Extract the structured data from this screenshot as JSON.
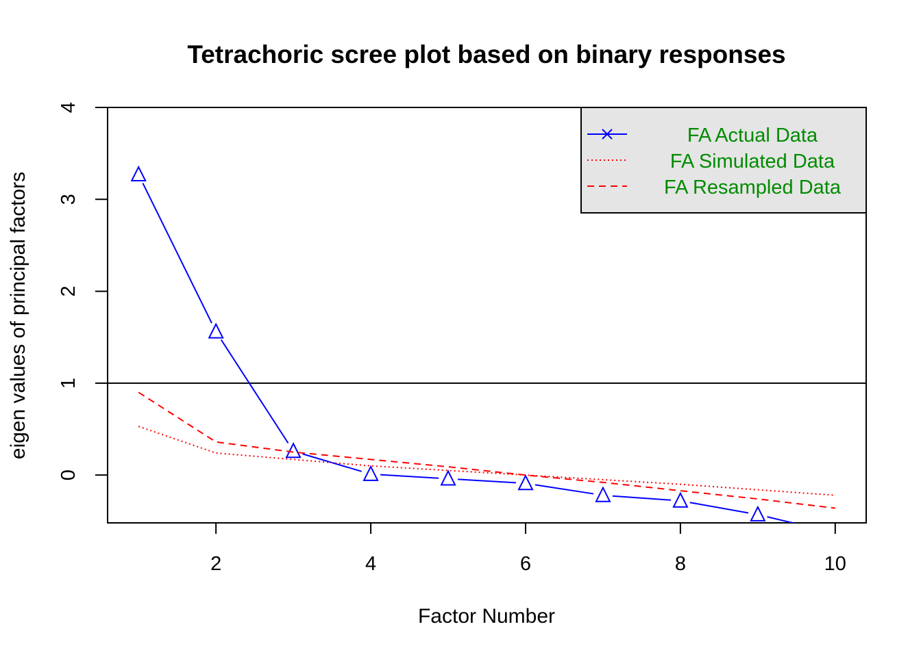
{
  "chart_data": {
    "type": "line",
    "title": "Tetrachoric scree plot based on binary responses",
    "xlabel": "Factor Number",
    "ylabel": "eigen values of principal factors",
    "xlim": [
      0.6,
      10.4
    ],
    "ylim": [
      -0.52,
      4
    ],
    "x_ticks": [
      2,
      4,
      6,
      8,
      10
    ],
    "y_ticks": [
      0,
      1,
      2,
      3,
      4
    ],
    "reference_line_y": 1,
    "x": [
      1,
      2,
      3,
      4,
      5,
      6,
      7,
      8,
      9,
      10
    ],
    "series": [
      {
        "name": "FA  Actual Data",
        "color": "#0000FF",
        "style": "solid",
        "marker": "triangle",
        "values": [
          3.27,
          1.56,
          0.26,
          0.01,
          -0.04,
          -0.09,
          -0.22,
          -0.28,
          -0.43,
          -0.63
        ]
      },
      {
        "name": "FA  Simulated Data",
        "color": "#FF0000",
        "style": "dotted",
        "values": [
          0.53,
          0.24,
          0.17,
          0.1,
          0.05,
          0.0,
          -0.05,
          -0.1,
          -0.16,
          -0.22
        ]
      },
      {
        "name": "FA  Resampled Data",
        "color": "#FF0000",
        "style": "dashed",
        "values": [
          0.9,
          0.36,
          0.25,
          0.17,
          0.09,
          0.0,
          -0.08,
          -0.17,
          -0.26,
          -0.36
        ]
      }
    ],
    "legend": {
      "placement": "top-right",
      "background": "#E5E5E5",
      "text_color": "#008B00",
      "legend_marker": "x"
    }
  }
}
